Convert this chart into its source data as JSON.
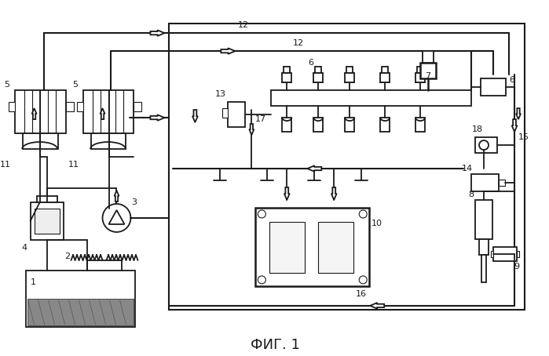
{
  "title": "ФИГ. 1",
  "title_fontsize": 13,
  "background_color": "#ffffff",
  "line_color": "#1a1a1a",
  "fig_width": 6.99,
  "fig_height": 4.54,
  "dpi": 100
}
